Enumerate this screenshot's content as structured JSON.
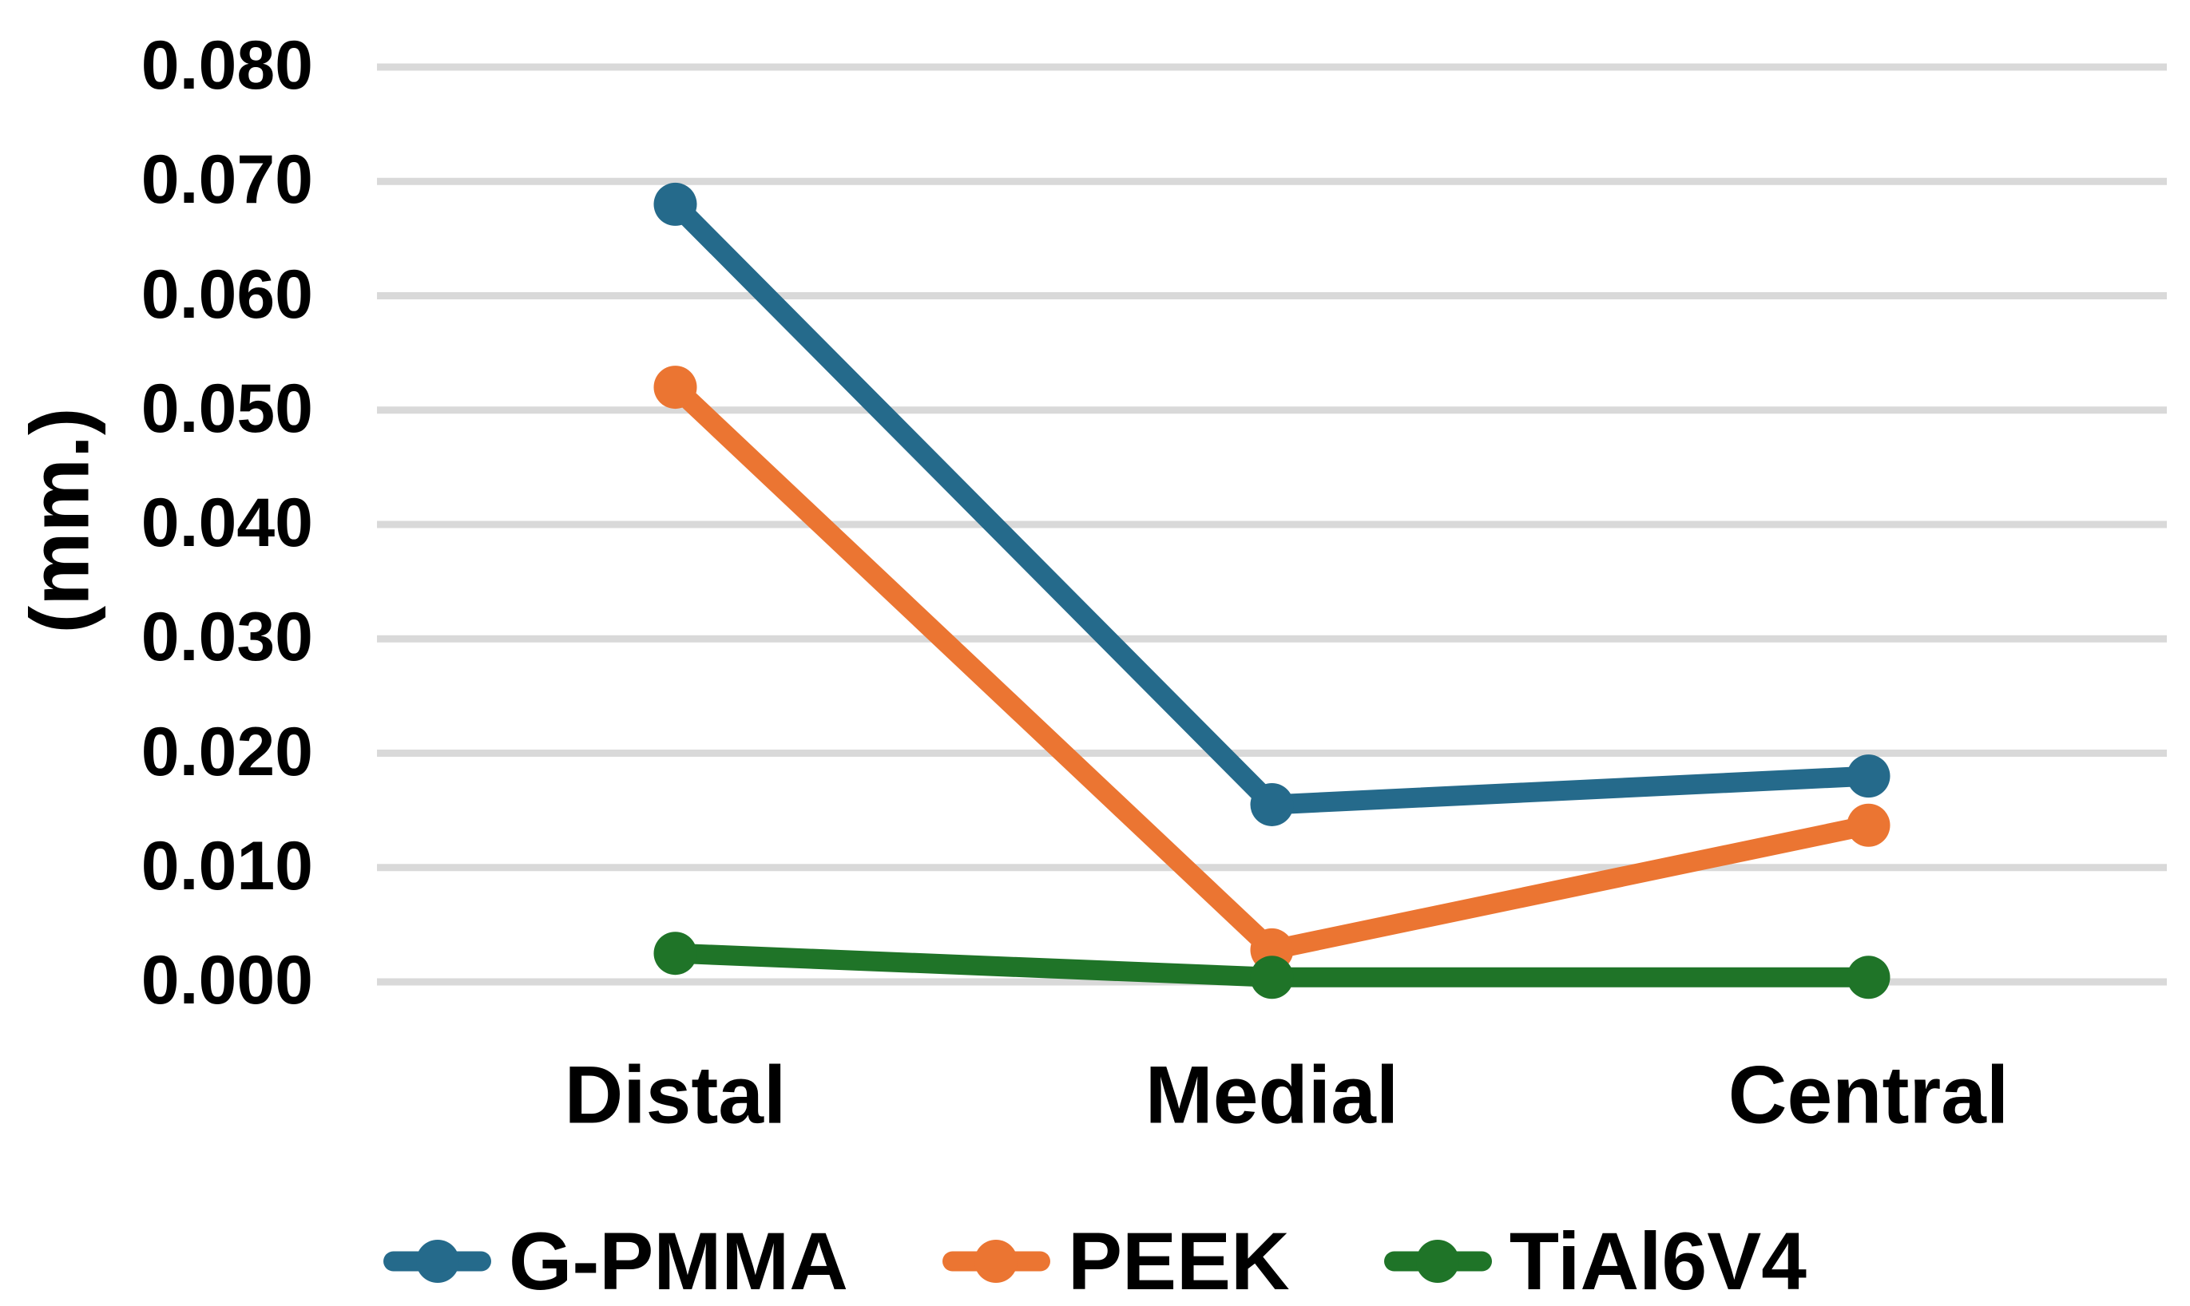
{
  "chart_data": {
    "type": "line",
    "title": "",
    "xlabel": "",
    "ylabel": "(mm.)",
    "categories": [
      "Distal",
      "Medial",
      "Central"
    ],
    "series": [
      {
        "name": "G-PMMA",
        "color": "#256A8B",
        "values": [
          0.068,
          0.0155,
          0.018
        ]
      },
      {
        "name": "PEEK",
        "color": "#EB7532",
        "values": [
          0.052,
          0.0028,
          0.0137
        ]
      },
      {
        "name": "TiAl6V4",
        "color": "#1F7428",
        "values": [
          0.0025,
          0.0004,
          0.0004
        ]
      }
    ],
    "ylim": [
      0,
      0.08
    ],
    "ytick_step": 0.01,
    "ytick_labels": [
      "0.000",
      "0.010",
      "0.020",
      "0.030",
      "0.040",
      "0.050",
      "0.060",
      "0.070",
      "0.080"
    ],
    "grid": "horizontal",
    "gridline_color": "#D9D9D9",
    "legend_position": "bottom",
    "text_color": "#000000",
    "background": "#FFFFFF"
  }
}
